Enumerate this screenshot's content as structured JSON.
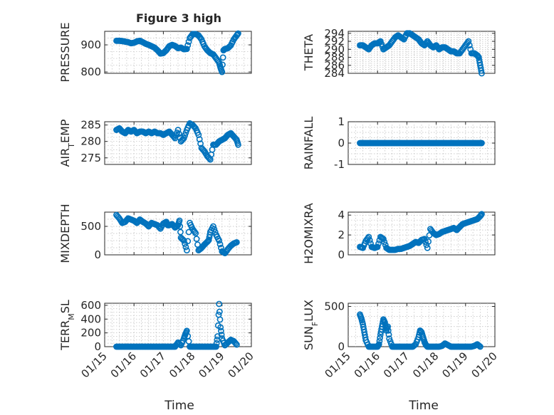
{
  "figure": {
    "title": "Figure 3 high",
    "marker_color": "#0072bd",
    "xaxis": {
      "label": "Time",
      "range": [
        15,
        20
      ],
      "ticks": [
        15,
        16,
        17,
        18,
        19,
        20
      ],
      "tick_labels": [
        "01/15",
        "01/16",
        "01/17",
        "01/18",
        "01/19",
        "01/20"
      ]
    }
  },
  "chart_data": [
    {
      "type": "scatter",
      "id": "pressure",
      "ylabel": "PRESSURE",
      "ylim": [
        795,
        950
      ],
      "yticks": [
        800,
        900
      ],
      "ytick_labels": [
        "800",
        "900"
      ],
      "x": [
        15.4,
        15.5,
        15.6,
        15.7,
        15.8,
        15.9,
        16.0,
        16.1,
        16.2,
        16.3,
        16.4,
        16.5,
        16.6,
        16.7,
        16.8,
        16.9,
        17.0,
        17.1,
        17.2,
        17.3,
        17.4,
        17.5,
        17.6,
        17.7,
        17.8,
        17.9,
        18.0,
        18.1,
        18.2,
        18.3,
        18.4,
        18.5,
        18.6,
        18.7,
        18.8,
        18.9,
        18.95,
        19.0,
        19.05,
        19.1,
        19.2,
        19.3,
        19.4,
        19.5,
        19.55
      ],
      "y": [
        915,
        915,
        914,
        912,
        910,
        906,
        908,
        913,
        915,
        910,
        904,
        900,
        895,
        890,
        880,
        868,
        870,
        880,
        895,
        900,
        896,
        888,
        890,
        884,
        885,
        925,
        940,
        940,
        935,
        920,
        895,
        880,
        870,
        865,
        850,
        835,
        815,
        800,
        880,
        885,
        888,
        898,
        920,
        935,
        942
      ]
    },
    {
      "type": "scatter",
      "id": "theta",
      "ylabel": "THETA",
      "ylim": [
        284,
        294.5
      ],
      "yticks": [
        284,
        286,
        288,
        290,
        292,
        294
      ],
      "ytick_labels": [
        "284",
        "286",
        "288",
        "290",
        "292",
        "294"
      ],
      "x": [
        15.4,
        15.5,
        15.6,
        15.7,
        15.8,
        15.9,
        16.0,
        16.1,
        16.2,
        16.3,
        16.4,
        16.5,
        16.6,
        16.7,
        16.8,
        16.9,
        17.0,
        17.1,
        17.2,
        17.3,
        17.4,
        17.5,
        17.6,
        17.7,
        17.8,
        17.9,
        18.0,
        18.1,
        18.2,
        18.3,
        18.4,
        18.5,
        18.6,
        18.7,
        18.8,
        18.9,
        19.0,
        19.1,
        19.2,
        19.3,
        19.4,
        19.45,
        19.5,
        19.55
      ],
      "y": [
        291,
        291,
        290.5,
        290,
        291,
        291.5,
        291.5,
        292,
        290,
        290.5,
        291,
        292,
        293,
        293.5,
        293,
        292.5,
        294,
        294,
        293.5,
        293,
        292.5,
        291.5,
        291,
        292,
        291,
        290.5,
        291,
        290,
        290.5,
        290.5,
        290,
        289.5,
        289.5,
        289,
        289,
        290,
        291,
        292,
        289,
        289,
        288.5,
        288,
        286,
        284
      ]
    },
    {
      "type": "scatter",
      "id": "air_temp",
      "ylabel": "AIR",
      "ylabel_sub": "T",
      "ylabel_tail": "EMP",
      "ylim": [
        273,
        286
      ],
      "yticks": [
        275,
        280,
        285
      ],
      "ytick_labels": [
        "275",
        "280",
        "285"
      ],
      "x": [
        15.4,
        15.5,
        15.6,
        15.7,
        15.8,
        15.9,
        16.0,
        16.1,
        16.2,
        16.3,
        16.4,
        16.5,
        16.6,
        16.7,
        16.8,
        16.9,
        17.0,
        17.1,
        17.2,
        17.3,
        17.4,
        17.5,
        17.6,
        17.7,
        17.8,
        17.9,
        18.0,
        18.1,
        18.2,
        18.3,
        18.4,
        18.5,
        18.6,
        18.7,
        18.8,
        18.9,
        19.0,
        19.1,
        19.2,
        19.3,
        19.4,
        19.5,
        19.55
      ],
      "y": [
        283.5,
        284,
        283,
        282.5,
        283.5,
        283,
        283.5,
        282.5,
        283,
        283,
        282.5,
        283,
        282.5,
        283,
        282.5,
        282.5,
        282,
        282.5,
        283,
        282,
        281,
        283.5,
        280,
        281,
        283.5,
        285.5,
        285,
        284,
        282,
        278,
        277,
        275.5,
        274.5,
        279,
        279,
        280,
        280.5,
        281,
        282,
        282.5,
        281.5,
        280.5,
        279
      ]
    },
    {
      "type": "scatter",
      "id": "rainfall",
      "ylabel": "RAINFALL",
      "ylim": [
        -1,
        1
      ],
      "yticks": [
        -1,
        0,
        1
      ],
      "ytick_labels": [
        "-1",
        "0",
        "1"
      ],
      "x": [
        15.4,
        15.5,
        15.6,
        15.7,
        15.8,
        15.9,
        16.0,
        16.1,
        16.2,
        16.3,
        16.4,
        16.5,
        16.6,
        16.7,
        16.8,
        16.9,
        17.0,
        17.1,
        17.2,
        17.3,
        17.4,
        17.5,
        17.6,
        17.7,
        17.8,
        17.9,
        18.0,
        18.1,
        18.2,
        18.3,
        18.4,
        18.5,
        18.6,
        18.7,
        18.8,
        18.9,
        19.0,
        19.1,
        19.2,
        19.3,
        19.4,
        19.5,
        19.55
      ],
      "y": [
        0,
        0,
        0,
        0,
        0,
        0,
        0,
        0,
        0,
        0,
        0,
        0,
        0,
        0,
        0,
        0,
        0,
        0,
        0,
        0,
        0,
        0,
        0,
        0,
        0,
        0,
        0,
        0,
        0,
        0,
        0,
        0,
        0,
        0,
        0,
        0,
        0,
        0,
        0,
        0,
        0,
        0,
        0
      ]
    },
    {
      "type": "scatter",
      "id": "mixdepth",
      "ylabel": "MIXDEPTH",
      "ylim": [
        0,
        750
      ],
      "yticks": [
        0,
        500
      ],
      "ytick_labels": [
        "0",
        "500"
      ],
      "x": [
        15.4,
        15.5,
        15.6,
        15.7,
        15.8,
        15.9,
        16.0,
        16.1,
        16.2,
        16.3,
        16.4,
        16.5,
        16.6,
        16.7,
        16.8,
        16.9,
        17.0,
        17.1,
        17.15,
        17.2,
        17.3,
        17.4,
        17.5,
        17.55,
        17.6,
        17.7,
        17.8,
        17.9,
        18.0,
        18.1,
        18.2,
        18.3,
        18.4,
        18.5,
        18.55,
        18.6,
        18.7,
        18.8,
        18.9,
        19.0,
        19.1,
        19.2,
        19.3,
        19.4,
        19.5
      ],
      "y": [
        700,
        640,
        560,
        580,
        640,
        620,
        600,
        560,
        620,
        580,
        550,
        500,
        560,
        540,
        520,
        460,
        550,
        580,
        520,
        520,
        540,
        480,
        520,
        600,
        300,
        250,
        80,
        560,
        450,
        380,
        80,
        120,
        180,
        230,
        260,
        400,
        500,
        350,
        250,
        60,
        30,
        100,
        160,
        200,
        220
      ]
    },
    {
      "type": "scatter",
      "id": "h2omixra",
      "ylabel": "H2OMIXRA",
      "ylim": [
        0,
        4.3
      ],
      "yticks": [
        0,
        2,
        4
      ],
      "ytick_labels": [
        "0",
        "2",
        "4"
      ],
      "x": [
        15.4,
        15.5,
        15.6,
        15.7,
        15.8,
        15.9,
        16.0,
        16.1,
        16.2,
        16.3,
        16.4,
        16.5,
        16.6,
        16.7,
        16.8,
        16.9,
        17.0,
        17.1,
        17.2,
        17.3,
        17.4,
        17.5,
        17.6,
        17.7,
        17.8,
        17.9,
        18.0,
        18.1,
        18.2,
        18.3,
        18.4,
        18.5,
        18.6,
        18.7,
        18.8,
        18.9,
        19.0,
        19.1,
        19.2,
        19.3,
        19.4,
        19.5,
        19.55
      ],
      "y": [
        0.8,
        0.7,
        1.4,
        1.8,
        0.8,
        0.7,
        0.8,
        1.8,
        1.6,
        0.7,
        0.5,
        0.5,
        0.5,
        0.6,
        0.6,
        0.7,
        0.8,
        0.9,
        1.1,
        1.3,
        1.2,
        1.5,
        1.6,
        0.7,
        2.6,
        2.2,
        2.0,
        2.1,
        2.3,
        2.4,
        2.5,
        2.6,
        2.7,
        2.5,
        2.8,
        3.1,
        3.2,
        3.3,
        3.4,
        3.5,
        3.6,
        3.9,
        4.1
      ]
    },
    {
      "type": "scatter",
      "id": "terr_msl",
      "ylabel": "TERR",
      "ylabel_sub": "M",
      "ylabel_tail": "SL",
      "ylim": [
        0,
        630
      ],
      "yticks": [
        0,
        200,
        400,
        600
      ],
      "ytick_labels": [
        "0",
        "200",
        "400",
        "600"
      ],
      "x": [
        15.4,
        15.5,
        15.6,
        15.7,
        15.8,
        15.9,
        16.0,
        16.1,
        16.2,
        16.3,
        16.4,
        16.5,
        16.6,
        16.7,
        16.8,
        16.9,
        17.0,
        17.1,
        17.2,
        17.3,
        17.4,
        17.5,
        17.6,
        17.7,
        17.75,
        17.8,
        17.9,
        18.0,
        18.1,
        18.2,
        18.3,
        18.4,
        18.5,
        18.6,
        18.7,
        18.8,
        18.85,
        18.9,
        18.95,
        19.0,
        19.1,
        19.2,
        19.3,
        19.4,
        19.5
      ],
      "y": [
        0,
        0,
        0,
        0,
        0,
        0,
        0,
        0,
        0,
        0,
        0,
        0,
        0,
        0,
        0,
        0,
        0,
        0,
        0,
        0,
        0,
        60,
        20,
        120,
        180,
        230,
        0,
        0,
        0,
        0,
        0,
        0,
        0,
        0,
        0,
        0,
        150,
        620,
        280,
        120,
        20,
        60,
        100,
        80,
        30
      ]
    },
    {
      "type": "scatter",
      "id": "sun_flux",
      "ylabel": "SUN",
      "ylabel_sub": "F",
      "ylabel_tail": "LUX",
      "ylim": [
        0,
        540
      ],
      "yticks": [
        0,
        500
      ],
      "ytick_labels": [
        "0",
        "500"
      ],
      "x": [
        15.4,
        15.45,
        15.5,
        15.55,
        15.6,
        15.7,
        15.8,
        15.9,
        16.0,
        16.05,
        16.1,
        16.15,
        16.2,
        16.25,
        16.3,
        16.35,
        16.4,
        16.5,
        16.6,
        16.7,
        16.8,
        16.9,
        17.0,
        17.1,
        17.2,
        17.3,
        17.4,
        17.45,
        17.5,
        17.55,
        17.6,
        17.65,
        17.7,
        17.8,
        17.9,
        18.0,
        18.1,
        18.2,
        18.3,
        18.4,
        18.5,
        18.6,
        18.7,
        18.8,
        18.9,
        19.0,
        19.1,
        19.2,
        19.3,
        19.4,
        19.5
      ],
      "y": [
        400,
        350,
        280,
        180,
        80,
        0,
        0,
        0,
        0,
        30,
        150,
        250,
        340,
        300,
        200,
        250,
        100,
        0,
        0,
        0,
        0,
        0,
        0,
        0,
        0,
        30,
        120,
        200,
        180,
        120,
        60,
        20,
        0,
        0,
        0,
        0,
        0,
        10,
        40,
        20,
        0,
        0,
        0,
        0,
        0,
        0,
        0,
        0,
        10,
        30,
        0
      ]
    }
  ]
}
